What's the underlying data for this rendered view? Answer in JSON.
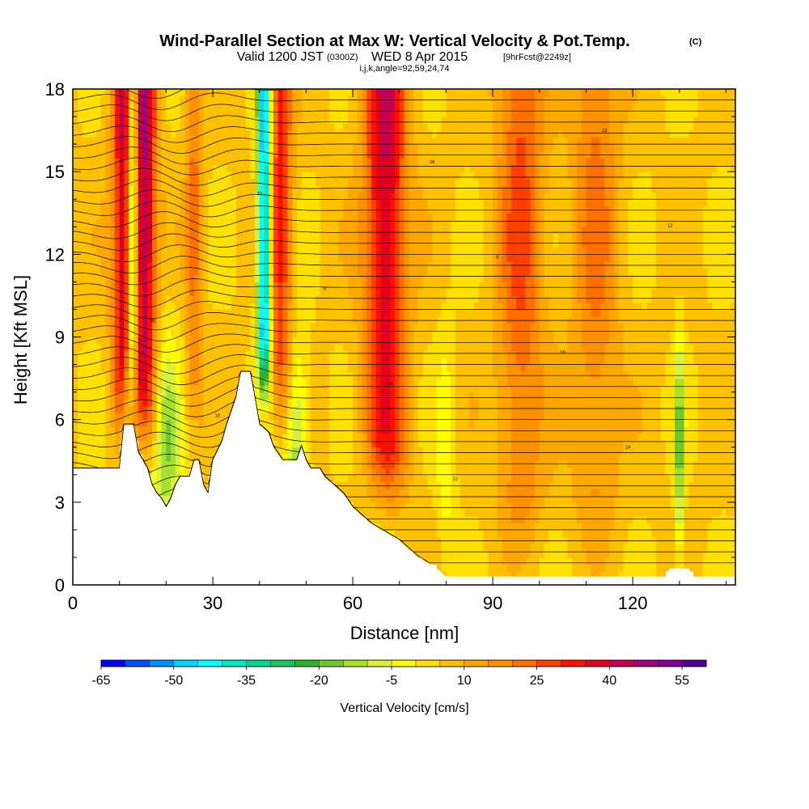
{
  "chart_data": {
    "type": "heatmap",
    "title": "Wind-Parallel Section at Max W: Vertical Velocity & Pot.Temp.",
    "title_mark": "(C)",
    "subtitle_left": "Valid 1200 JST",
    "subtitle_zulu": "(0300Z)",
    "subtitle_date": "WED 8 Apr 2015",
    "subtitle_fcst": "[9hrFcst@2249z]",
    "subtitle_indices": "i,j,k,angle=92,59,24,74",
    "xlabel": "Distance [nm]",
    "ylabel": "Height [Kft MSL]",
    "xlim": [
      0,
      142
    ],
    "ylim": [
      0,
      18
    ],
    "x_ticks": [
      "0",
      "30",
      "60",
      "90",
      "120"
    ],
    "y_ticks": [
      "0",
      "3",
      "6",
      "9",
      "12",
      "15",
      "18"
    ],
    "colorbar": {
      "label": "Vertical Velocity [cm/s]",
      "tick_labels": [
        "-65",
        "-50",
        "-35",
        "-20",
        "-5",
        "10",
        "25",
        "40",
        "55"
      ],
      "colors": [
        "#0000ff",
        "#0050ff",
        "#0090ff",
        "#00d8ff",
        "#00ffff",
        "#00e8c0",
        "#00d890",
        "#20c060",
        "#30b030",
        "#70c830",
        "#a8e030",
        "#d8f040",
        "#ffff00",
        "#ffe000",
        "#ffc000",
        "#ffa800",
        "#ff9000",
        "#ff7000",
        "#ff4000",
        "#ff1000",
        "#e00020",
        "#c00050",
        "#a00080",
        "#800090",
        "#500090"
      ]
    },
    "terrain_kft": [
      [
        0,
        4.2
      ],
      [
        10,
        4.2
      ],
      [
        11,
        5.8
      ],
      [
        13,
        5.8
      ],
      [
        14,
        4.8
      ],
      [
        16,
        4.2
      ],
      [
        17,
        3.6
      ],
      [
        18,
        3.3
      ],
      [
        19,
        3.1
      ],
      [
        20,
        2.8
      ],
      [
        21,
        3.1
      ],
      [
        22,
        3.6
      ],
      [
        23,
        3.9
      ],
      [
        25,
        3.9
      ],
      [
        26,
        4.5
      ],
      [
        27,
        4.5
      ],
      [
        28,
        3.6
      ],
      [
        29,
        3.3
      ],
      [
        30,
        4.5
      ],
      [
        32,
        5.2
      ],
      [
        33,
        5.8
      ],
      [
        34,
        6.3
      ],
      [
        35,
        6.8
      ],
      [
        36,
        7.7
      ],
      [
        38,
        7.7
      ],
      [
        39,
        6.8
      ],
      [
        40,
        5.8
      ],
      [
        42,
        5.5
      ],
      [
        43,
        5.0
      ],
      [
        45,
        4.5
      ],
      [
        48,
        4.5
      ],
      [
        49,
        5.0
      ],
      [
        50,
        4.5
      ],
      [
        51,
        4.2
      ],
      [
        53,
        4.2
      ],
      [
        54,
        3.9
      ],
      [
        56,
        3.6
      ],
      [
        58,
        3.3
      ],
      [
        60,
        2.8
      ],
      [
        62,
        2.5
      ],
      [
        64,
        2.2
      ],
      [
        66,
        2.0
      ],
      [
        68,
        1.8
      ],
      [
        70,
        1.6
      ],
      [
        72,
        1.3
      ],
      [
        74,
        1.0
      ],
      [
        76,
        0.8
      ],
      [
        78,
        0.6
      ],
      [
        80,
        0.3
      ],
      [
        127,
        0.3
      ],
      [
        128,
        0.6
      ],
      [
        132,
        0.6
      ],
      [
        133,
        0.3
      ],
      [
        142,
        0.3
      ]
    ],
    "updraft_cores": [
      {
        "x_nm": 11.5,
        "width_nm": 2.8,
        "max_cm_s": 40
      },
      {
        "x_nm": 15.5,
        "width_nm": 2.5,
        "max_cm_s": 35
      },
      {
        "x_nm": 26.0,
        "width_nm": 1.8,
        "max_cm_s": 15
      },
      {
        "x_nm": 44.5,
        "width_nm": 2.5,
        "max_cm_s": 25
      },
      {
        "x_nm": 67.0,
        "width_nm": 4.5,
        "max_cm_s": 35
      },
      {
        "x_nm": 96.0,
        "width_nm": 5.0,
        "max_cm_s": 20
      },
      {
        "x_nm": 112.0,
        "width_nm": 5.0,
        "max_cm_s": 15
      }
    ],
    "downdraft_cores": [
      {
        "x_nm": 12.8,
        "width_nm": 1.3,
        "min_cm_s": -50
      },
      {
        "x_nm": 41.0,
        "width_nm": 1.4,
        "min_cm_s": -60
      },
      {
        "x_nm": 20.0,
        "width_nm": 3.0,
        "min_cm_s": -20
      },
      {
        "x_nm": 48.0,
        "width_nm": 2.5,
        "min_cm_s": -20
      },
      {
        "x_nm": 80.0,
        "width_nm": 2.0,
        "min_cm_s": -10
      },
      {
        "x_nm": 130.0,
        "width_nm": 1.0,
        "min_cm_s": -25
      }
    ],
    "contour_labels": [
      "20",
      "26",
      "22",
      "24",
      "10",
      "14",
      "16",
      "18",
      "8",
      "6",
      "12"
    ]
  }
}
